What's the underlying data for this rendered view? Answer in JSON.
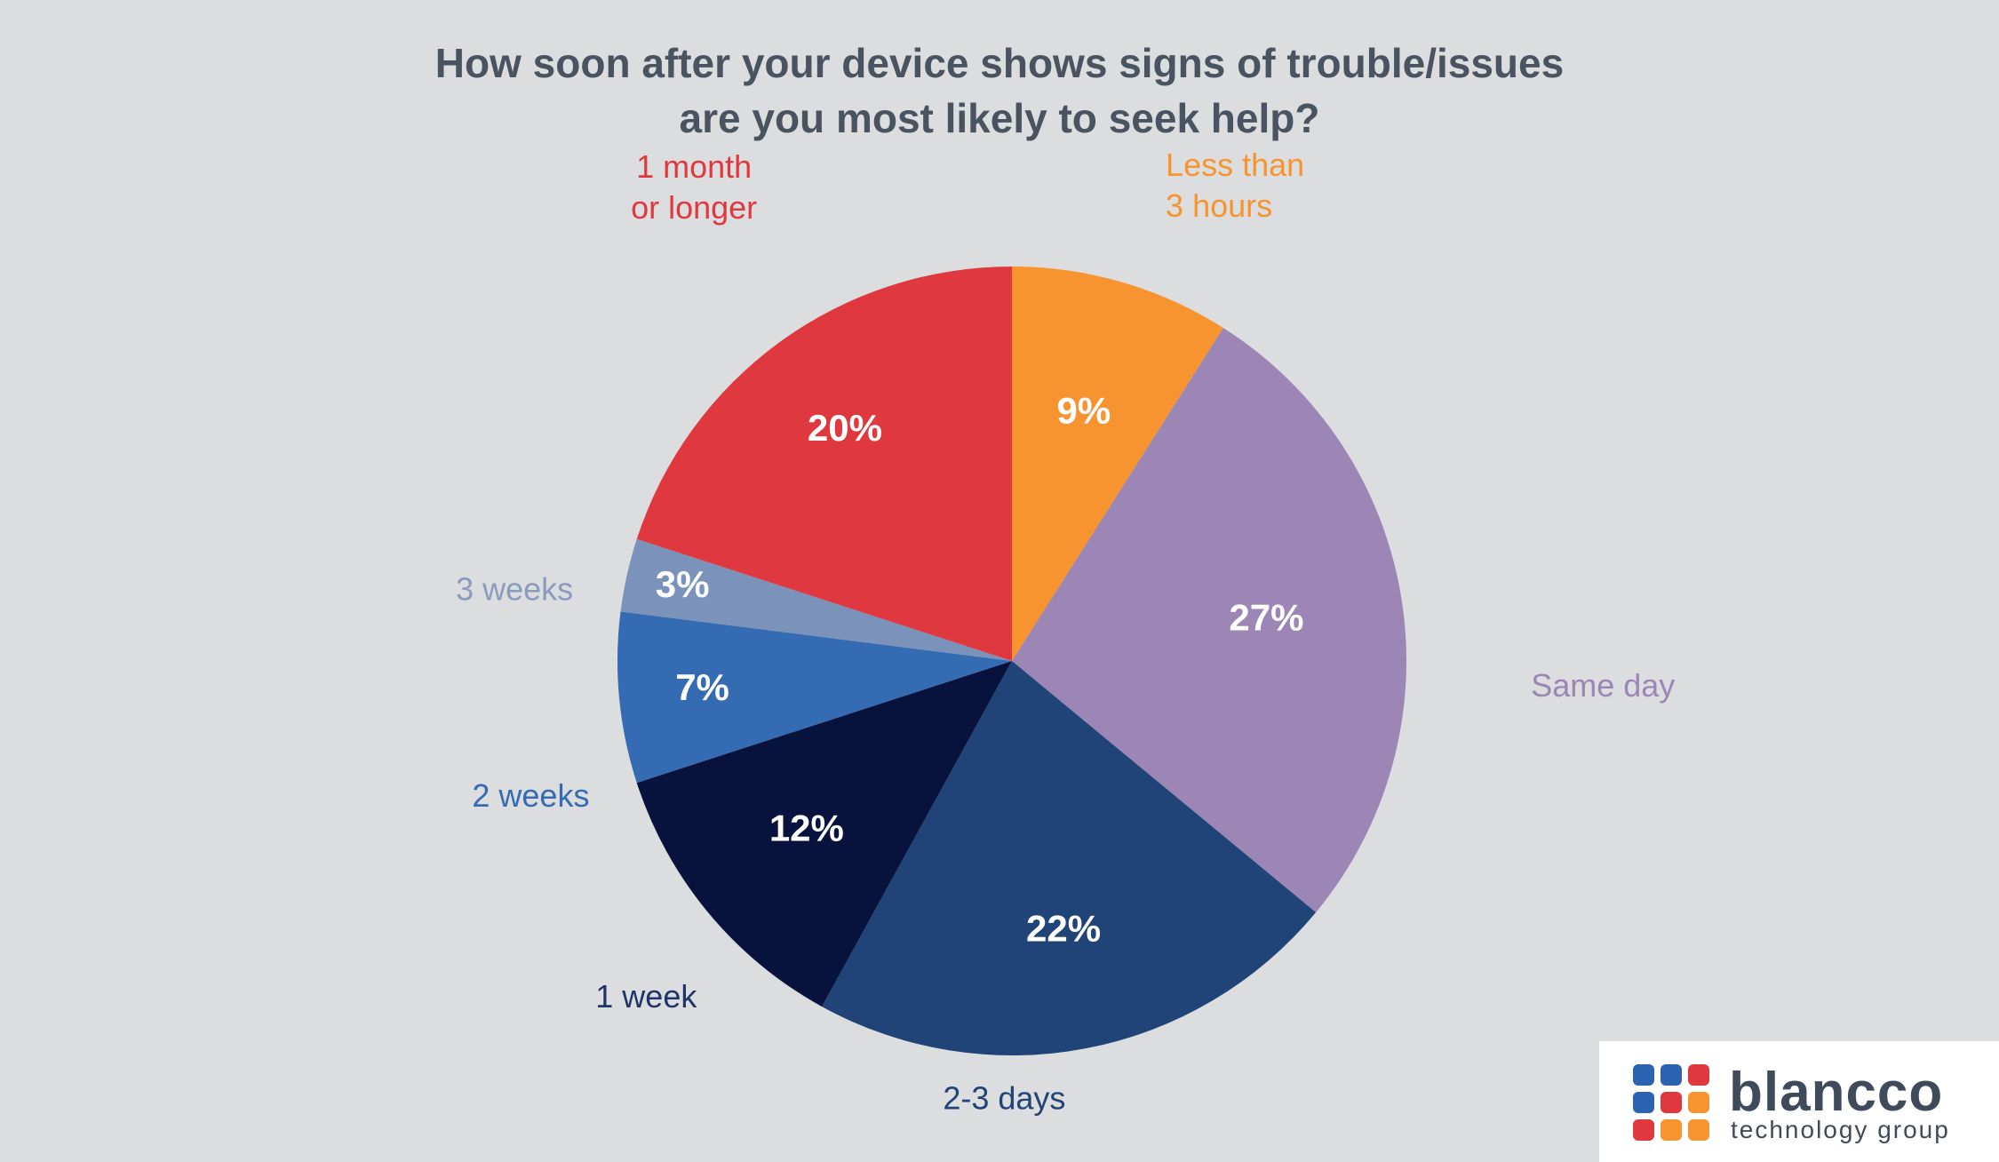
{
  "chart_data": {
    "type": "pie",
    "title": [
      "How soon after your device shows signs of trouble/issues",
      "are you most likely to seek help?"
    ],
    "slices": [
      {
        "label": "Less than\n3 hours",
        "value": 9,
        "value_label": "9%",
        "color": "#f7942f",
        "label_color": "#f7942f"
      },
      {
        "label": "Same day",
        "value": 27,
        "value_label": "27%",
        "color": "#9b86b6",
        "label_color": "#9b86b6"
      },
      {
        "label": "2-3 days",
        "value": 22,
        "value_label": "22%",
        "color": "#204477",
        "label_color": "#204477"
      },
      {
        "label": "1 week",
        "value": 12,
        "value_label": "12%",
        "color": "#08133d",
        "label_color": "#1f3468"
      },
      {
        "label": "2 weeks",
        "value": 7,
        "value_label": "7%",
        "color": "#346bb3",
        "label_color": "#346bb3"
      },
      {
        "label": "3 weeks",
        "value": 3,
        "value_label": "3%",
        "color": "#7b93ba",
        "label_color": "#8a9bbd"
      },
      {
        "label": "1 month\nor longer",
        "value": 20,
        "value_label": "20%",
        "color": "#e0383f",
        "label_color": "#e0383f"
      }
    ]
  },
  "logo": {
    "name": "blancco",
    "tagline": "technology group"
  }
}
